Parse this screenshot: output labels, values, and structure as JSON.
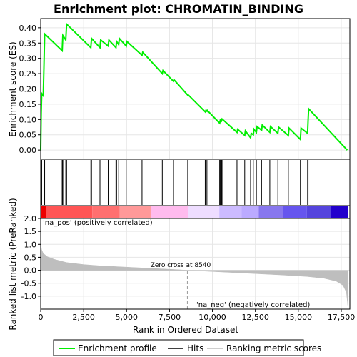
{
  "chart_data": {
    "type": "line",
    "title": "Enrichment plot: CHROMATIN_BINDING",
    "x_axis": {
      "label": "Rank in Ordered Dataset",
      "range": [
        0,
        18000
      ],
      "ticks": [
        {
          "value": 0,
          "label": "0"
        },
        {
          "value": 2500,
          "label": "2,500"
        },
        {
          "value": 5000,
          "label": "5,000"
        },
        {
          "value": 7500,
          "label": "7,500"
        },
        {
          "value": 10000,
          "label": "10,000"
        },
        {
          "value": 12500,
          "label": "12,500"
        },
        {
          "value": 15000,
          "label": "15,000"
        },
        {
          "value": 17500,
          "label": "17,500"
        }
      ]
    },
    "es_panel": {
      "ylabel": "Enrichment score (ES)",
      "ylim": [
        -0.03,
        0.43
      ],
      "yticks": [
        {
          "value": 0.0,
          "label": "0.00"
        },
        {
          "value": 0.05,
          "label": "0.05"
        },
        {
          "value": 0.1,
          "label": "0.10"
        },
        {
          "value": 0.15,
          "label": "0.15"
        },
        {
          "value": 0.2,
          "label": "0.20"
        },
        {
          "value": 0.25,
          "label": "0.25"
        },
        {
          "value": 0.3,
          "label": "0.30"
        },
        {
          "value": 0.35,
          "label": "0.35"
        },
        {
          "value": 0.4,
          "label": "0.40"
        }
      ],
      "grid": true,
      "series": [
        {
          "name": "Enrichment profile",
          "color": "#00ee00",
          "points": [
            [
              0,
              0.0
            ],
            [
              30,
              0.12
            ],
            [
              60,
              0.185
            ],
            [
              150,
              0.178
            ],
            [
              190,
              0.28
            ],
            [
              230,
              0.38
            ],
            [
              1250,
              0.325
            ],
            [
              1290,
              0.375
            ],
            [
              1460,
              0.36
            ],
            [
              1510,
              0.412
            ],
            [
              2920,
              0.335
            ],
            [
              2960,
              0.365
            ],
            [
              3450,
              0.335
            ],
            [
              3490,
              0.36
            ],
            [
              3930,
              0.34
            ],
            [
              3970,
              0.36
            ],
            [
              4380,
              0.335
            ],
            [
              4420,
              0.355
            ],
            [
              4540,
              0.345
            ],
            [
              4580,
              0.365
            ],
            [
              4980,
              0.34
            ],
            [
              5020,
              0.355
            ],
            [
              5900,
              0.31
            ],
            [
              5940,
              0.32
            ],
            [
              7080,
              0.25
            ],
            [
              7120,
              0.26
            ],
            [
              7730,
              0.225
            ],
            [
              7760,
              0.23
            ],
            [
              8560,
              0.18
            ],
            [
              8600,
              0.18
            ],
            [
              9580,
              0.125
            ],
            [
              9620,
              0.13
            ],
            [
              9680,
              0.127
            ],
            [
              9700,
              0.13
            ],
            [
              10420,
              0.088
            ],
            [
              10460,
              0.098
            ],
            [
              10520,
              0.095
            ],
            [
              10560,
              0.102
            ],
            [
              11430,
              0.058
            ],
            [
              11470,
              0.068
            ],
            [
              11880,
              0.048
            ],
            [
              11920,
              0.063
            ],
            [
              12220,
              0.04
            ],
            [
              12260,
              0.055
            ],
            [
              12380,
              0.05
            ],
            [
              12420,
              0.068
            ],
            [
              12560,
              0.058
            ],
            [
              12600,
              0.077
            ],
            [
              12860,
              0.065
            ],
            [
              12900,
              0.082
            ],
            [
              13340,
              0.058
            ],
            [
              13380,
              0.077
            ],
            [
              13810,
              0.055
            ],
            [
              13850,
              0.075
            ],
            [
              14420,
              0.048
            ],
            [
              14460,
              0.072
            ],
            [
              15120,
              0.035
            ],
            [
              15160,
              0.072
            ],
            [
              15540,
              0.055
            ],
            [
              15570,
              0.095
            ],
            [
              15600,
              0.135
            ],
            [
              17850,
              0.0
            ]
          ]
        }
      ]
    },
    "hits": [
      0,
      30,
      60,
      190,
      230,
      1250,
      1290,
      1460,
      1510,
      2920,
      2960,
      3450,
      3930,
      4380,
      4420,
      4540,
      4980,
      5900,
      7080,
      7730,
      8560,
      9580,
      9620,
      9680,
      10420,
      10460,
      10520,
      10560,
      11430,
      11880,
      12220,
      12380,
      12560,
      12860,
      13340,
      13810,
      14420,
      15120,
      15540,
      15570
    ],
    "rank_panel": {
      "ylabel": "Ranked list metric (PreRanked)",
      "ylim": [
        -1.5,
        2.0
      ],
      "yticks": [
        {
          "value": -1.0,
          "label": "-1.0"
        },
        {
          "value": -0.5,
          "label": "-0.5"
        },
        {
          "value": 0.0,
          "label": "0.0"
        },
        {
          "value": 0.5,
          "label": "0.5"
        },
        {
          "value": 1.0,
          "label": "1.0"
        },
        {
          "value": 1.5,
          "label": "1.5"
        },
        {
          "value": 2.0,
          "label": "2.0"
        }
      ],
      "grid": true,
      "fill_color": "#bebebe",
      "series": [
        {
          "name": "Ranking metric scores",
          "points": [
            [
              0,
              1.05
            ],
            [
              50,
              0.8
            ],
            [
              150,
              0.65
            ],
            [
              400,
              0.52
            ],
            [
              800,
              0.42
            ],
            [
              1500,
              0.3
            ],
            [
              2500,
              0.22
            ],
            [
              3500,
              0.17
            ],
            [
              5000,
              0.12
            ],
            [
              6500,
              0.07
            ],
            [
              8000,
              0.02
            ],
            [
              8540,
              0.0
            ],
            [
              9500,
              -0.03
            ],
            [
              11000,
              -0.08
            ],
            [
              12500,
              -0.13
            ],
            [
              14000,
              -0.18
            ],
            [
              15500,
              -0.24
            ],
            [
              16500,
              -0.31
            ],
            [
              17200,
              -0.42
            ],
            [
              17600,
              -0.58
            ],
            [
              17800,
              -0.85
            ],
            [
              17880,
              -1.35
            ],
            [
              17900,
              0.0
            ]
          ]
        }
      ],
      "zero_cross_rank": 8540,
      "zero_cross_label": "Zero cross at 8540",
      "pos_label": "'na_pos' (positively correlated)",
      "neg_label": "'na_neg' (negatively correlated)",
      "pos_color": "#cc0000",
      "neg_color": "#0000cc"
    },
    "heat_bar": {
      "segments": [
        {
          "from": 0,
          "to": 300,
          "color": "#ee0000"
        },
        {
          "from": 300,
          "to": 3000,
          "color": "#ff5555"
        },
        {
          "from": 3000,
          "to": 4600,
          "color": "#ff7070"
        },
        {
          "from": 4600,
          "to": 6400,
          "color": "#ff9999"
        },
        {
          "from": 6400,
          "to": 8600,
          "color": "#ffbbee"
        },
        {
          "from": 8600,
          "to": 10400,
          "color": "#eeddff"
        },
        {
          "from": 10400,
          "to": 11700,
          "color": "#ccbbff"
        },
        {
          "from": 11700,
          "to": 12700,
          "color": "#bbaaff"
        },
        {
          "from": 12700,
          "to": 14100,
          "color": "#8877ee"
        },
        {
          "from": 14100,
          "to": 15500,
          "color": "#6655ee"
        },
        {
          "from": 15500,
          "to": 16900,
          "color": "#5544dd"
        },
        {
          "from": 16900,
          "to": 17900,
          "color": "#2200cc"
        }
      ]
    },
    "legend": {
      "placement": "bottom",
      "items": [
        {
          "label": "Enrichment profile",
          "kind": "line",
          "color": "#00ee00"
        },
        {
          "label": "Hits",
          "kind": "line",
          "color": "#000000"
        },
        {
          "label": "Ranking metric scores",
          "kind": "line",
          "color": "#bebebe"
        }
      ]
    }
  }
}
